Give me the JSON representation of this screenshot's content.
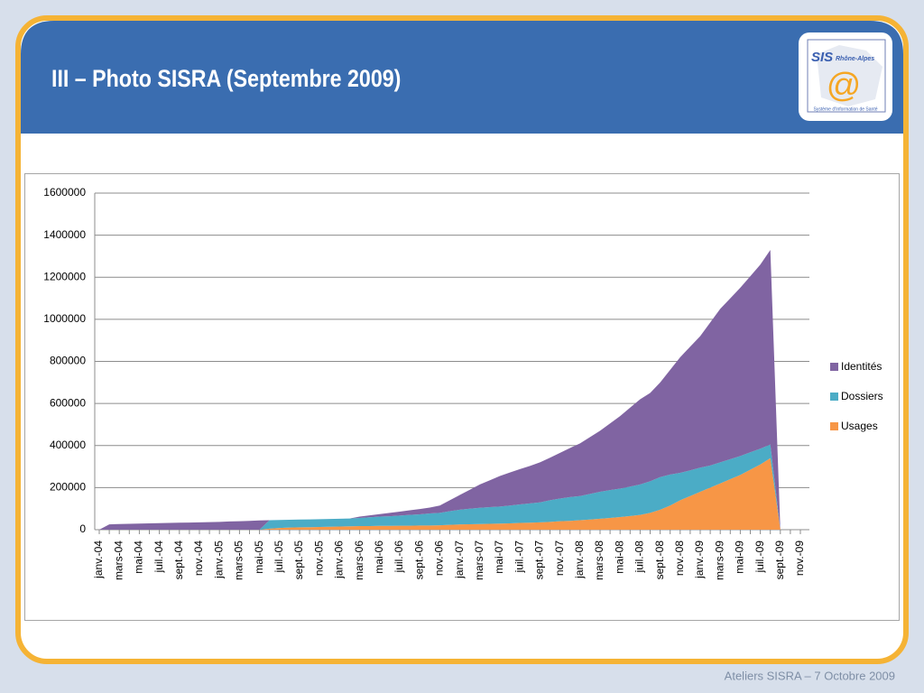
{
  "header": {
    "title": "III – Photo SISRA (Septembre 2009)"
  },
  "logo": {
    "name": "SIS",
    "region": "Rhône-Alpes",
    "symbol": "@",
    "caption": "Système d'Information de Santé"
  },
  "footer": "Ateliers SISRA – 7 Octobre 2009",
  "chart_data": {
    "type": "stacked_area",
    "categories": [
      "janv.-04",
      null,
      "mars-04",
      null,
      "mai-04",
      null,
      "juil.-04",
      null,
      "sept.-04",
      null,
      "nov.-04",
      null,
      "janv.-05",
      null,
      "mars-05",
      null,
      "mai-05",
      null,
      "juil.-05",
      null,
      "sept.-05",
      null,
      "nov.-05",
      null,
      "janv.-06",
      null,
      "mars-06",
      null,
      "mai-06",
      null,
      "juil.-06",
      null,
      "sept.-06",
      null,
      "nov.-06",
      null,
      "janv.-07",
      null,
      "mars-07",
      null,
      "mai-07",
      null,
      "juil.-07",
      null,
      "sept.-07",
      null,
      "nov.-07",
      null,
      "janv.-08",
      null,
      "mars-08",
      null,
      "mai-08",
      null,
      "juil.-08",
      null,
      "sept.-08",
      null,
      "nov.-08",
      null,
      "janv.-09",
      null,
      "mars-09",
      null,
      "mai-09",
      null,
      "juil.-09",
      null,
      "sept.-09",
      null,
      "nov.-09"
    ],
    "series": [
      {
        "name": "Usages",
        "color": "#f79646",
        "values": [
          0,
          0,
          0,
          0,
          0,
          0,
          0,
          0,
          0,
          0,
          0,
          0,
          0,
          0,
          0,
          0,
          0,
          5000,
          8000,
          10000,
          11000,
          12000,
          13000,
          14000,
          15000,
          16000,
          17000,
          17000,
          18000,
          18000,
          19000,
          19000,
          20000,
          20000,
          21000,
          23000,
          25000,
          26000,
          27000,
          28000,
          29000,
          30000,
          32000,
          33000,
          35000,
          37000,
          40000,
          42000,
          45000,
          48000,
          52000,
          56000,
          60000,
          65000,
          70000,
          80000,
          95000,
          115000,
          140000,
          160000,
          180000,
          200000,
          220000,
          240000,
          260000,
          285000,
          310000,
          340000,
          0,
          null,
          null
        ]
      },
      {
        "name": "Dossiers",
        "color": "#4bacc6",
        "values": [
          0,
          0,
          0,
          0,
          0,
          0,
          0,
          0,
          0,
          0,
          0,
          0,
          0,
          0,
          0,
          0,
          0,
          40000,
          38000,
          37000,
          37000,
          37000,
          37000,
          37000,
          37000,
          37000,
          39000,
          42000,
          44000,
          46000,
          48000,
          51000,
          53000,
          57000,
          59000,
          65000,
          70000,
          74000,
          77000,
          79000,
          81000,
          85000,
          88000,
          92000,
          95000,
          103000,
          108000,
          113000,
          115000,
          122000,
          128000,
          132000,
          135000,
          140000,
          145000,
          150000,
          155000,
          147000,
          130000,
          122000,
          115000,
          105000,
          100000,
          95000,
          90000,
          83000,
          75000,
          65000,
          0,
          null,
          null
        ]
      },
      {
        "name": "Identités",
        "color": "#8064a2",
        "values": [
          0,
          25000,
          27000,
          28000,
          29000,
          30000,
          31000,
          32000,
          33000,
          34000,
          35000,
          36000,
          37000,
          39000,
          40000,
          42000,
          44000,
          0,
          0,
          0,
          0,
          0,
          0,
          0,
          0,
          0,
          6000,
          9000,
          12000,
          16000,
          19000,
          22000,
          25000,
          28000,
          35000,
          52000,
          70000,
          90000,
          111000,
          128000,
          145000,
          157000,
          168000,
          178000,
          190000,
          202000,
          217000,
          233000,
          250000,
          270000,
          290000,
          317000,
          345000,
          375000,
          405000,
          420000,
          450000,
          498000,
          550000,
          588000,
          625000,
          680000,
          730000,
          765000,
          800000,
          837000,
          875000,
          925000,
          0,
          null,
          null
        ]
      }
    ],
    "ylim": [
      0,
      1600000
    ],
    "yticks": [
      0,
      200000,
      400000,
      600000,
      800000,
      1000000,
      1200000,
      1400000,
      1600000
    ],
    "grid": true,
    "legend": "right"
  }
}
